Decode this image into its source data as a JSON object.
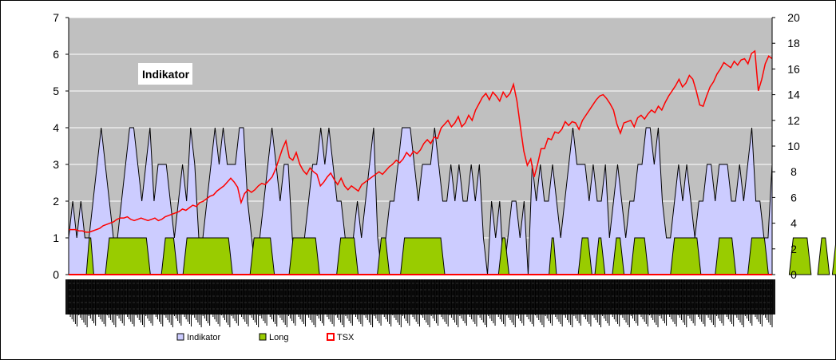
{
  "chart_data": {
    "type": "area",
    "title": "",
    "annotation": "Indikator",
    "y_left": {
      "min": 0,
      "max": 7,
      "ticks": [
        0,
        1,
        2,
        3,
        4,
        5,
        6,
        7
      ]
    },
    "y_right": {
      "min": 0,
      "max": 20,
      "ticks": [
        0,
        2,
        4,
        6,
        8,
        10,
        12,
        14,
        16,
        18,
        20
      ]
    },
    "grid": "horizontal",
    "legend_position": "bottom",
    "plot_background": "#c0c0c0",
    "series": [
      {
        "name": "Indikator",
        "kind": "area",
        "axis": "left",
        "color": "#ccccff",
        "values": [
          1,
          2,
          1,
          2,
          1,
          1,
          2,
          3,
          4,
          3,
          2,
          1,
          1,
          2,
          3,
          4,
          4,
          3,
          2,
          3,
          4,
          2,
          3,
          3,
          3,
          2,
          1,
          2,
          3,
          2,
          4,
          3,
          1,
          1,
          2,
          3,
          4,
          3,
          4,
          3,
          3,
          3,
          4,
          4,
          2,
          1,
          0,
          1,
          2,
          3,
          4,
          3,
          2,
          3,
          3,
          1,
          0,
          1,
          1,
          2,
          3,
          3,
          4,
          3,
          4,
          3,
          2,
          2,
          1,
          0,
          1,
          2,
          1,
          2,
          3,
          4,
          1,
          0,
          1,
          2,
          2,
          3,
          4,
          4,
          4,
          3,
          2,
          3,
          3,
          3,
          4,
          3,
          2,
          2,
          3,
          2,
          3,
          2,
          2,
          3,
          2,
          3,
          1,
          0,
          2,
          1,
          2,
          0,
          1,
          2,
          2,
          1,
          2,
          0,
          3,
          2,
          3,
          2,
          2,
          3,
          2,
          1,
          2,
          3,
          4,
          3,
          3,
          3,
          2,
          3,
          2,
          2,
          3,
          1,
          2,
          3,
          2,
          1,
          2,
          2,
          3,
          3,
          4,
          4,
          3,
          4,
          2,
          1,
          1,
          2,
          3,
          2,
          3,
          2,
          1,
          2,
          2,
          3,
          3,
          2,
          3,
          3,
          3,
          2,
          2,
          3,
          2,
          3,
          4,
          2,
          2,
          1,
          1,
          3
        ]
      },
      {
        "name": "Long",
        "kind": "area",
        "axis": "left",
        "color": "#99cc00",
        "intervals": [
          [
            4.7,
            5.8
          ],
          [
            9.5,
            19.6
          ],
          [
            23.3,
            26.3
          ],
          [
            28.6,
            39.8
          ],
          [
            45.1,
            50.1
          ],
          [
            54.7,
            61.2
          ],
          [
            66.4,
            70.7
          ],
          [
            76.4,
            78.4
          ],
          [
            82.1,
            92.0
          ],
          [
            106.2,
            107.8
          ],
          [
            118.5,
            119.6
          ],
          [
            125.8,
            128.2
          ],
          [
            129.9,
            131.4
          ],
          [
            134.2,
            136.1
          ],
          [
            138.7,
            142.1
          ],
          [
            148.5,
            155.0
          ],
          [
            159.5,
            163.6
          ],
          [
            167.5,
            171.6
          ],
          [
            177.7,
            182.1
          ],
          [
            184.7,
            186.6
          ],
          [
            188.3,
            190.9
          ],
          [
            194.4,
            196.0
          ]
        ]
      },
      {
        "name": "TSX",
        "kind": "line",
        "axis": "right",
        "color": "#ff0000",
        "values": [
          3.5,
          3.5,
          3.5,
          3.4,
          3.4,
          3.3,
          3.3,
          3.4,
          3.5,
          3.6,
          3.8,
          3.9,
          4.0,
          4.1,
          4.3,
          4.4,
          4.4,
          4.5,
          4.3,
          4.2,
          4.3,
          4.4,
          4.3,
          4.2,
          4.3,
          4.4,
          4.2,
          4.3,
          4.5,
          4.6,
          4.7,
          4.8,
          4.9,
          5.1,
          5.0,
          5.2,
          5.4,
          5.3,
          5.6,
          5.7,
          5.9,
          6.1,
          6.2,
          6.5,
          6.7,
          6.9,
          7.2,
          7.5,
          7.2,
          6.8,
          5.6,
          6.3,
          6.6,
          6.4,
          6.6,
          6.9,
          7.1,
          7.0,
          7.3,
          7.6,
          8.2,
          9.0,
          9.8,
          10.4,
          9.1,
          8.9,
          9.5,
          8.6,
          8.1,
          7.8,
          8.3,
          8.0,
          7.8,
          6.9,
          7.2,
          7.6,
          7.9,
          7.4,
          7.0,
          7.5,
          6.9,
          6.6,
          6.9,
          6.7,
          6.5,
          7.0,
          7.2,
          7.4,
          7.6,
          7.8,
          8.0,
          7.8,
          8.1,
          8.4,
          8.6,
          8.9,
          8.7,
          9.0,
          9.5,
          9.2,
          9.6,
          9.4,
          9.7,
          10.2,
          10.5,
          10.2,
          10.7,
          10.6,
          11.4,
          11.7,
          12.0,
          11.5,
          11.8,
          12.3,
          11.5,
          11.8,
          12.4,
          12.0,
          12.8,
          13.3,
          13.8,
          14.1,
          13.6,
          14.2,
          13.9,
          13.5,
          14.2,
          13.8,
          14.1,
          14.8,
          13.5,
          11.5,
          9.6,
          8.5,
          9.0,
          7.6,
          8.6,
          9.8,
          9.8,
          10.6,
          10.5,
          11.1,
          11.0,
          11.3,
          11.9,
          11.6,
          11.9,
          11.8,
          11.3,
          12.0,
          12.4,
          12.8,
          13.2,
          13.6,
          13.9,
          14.0,
          13.7,
          13.3,
          12.8,
          11.7,
          11.0,
          11.8,
          11.9,
          12.0,
          11.5,
          12.2,
          12.4,
          12.1,
          12.5,
          12.8,
          12.6,
          13.1,
          12.8,
          13.4,
          13.9,
          14.3,
          14.7,
          15.2,
          14.6,
          14.9,
          15.5,
          15.2,
          14.3,
          13.2,
          13.1,
          13.9,
          14.6,
          15.0,
          15.6,
          16.0,
          16.5,
          16.3,
          16.1,
          16.6,
          16.3,
          16.7,
          16.8,
          16.4,
          17.2,
          17.4,
          14.3,
          15.2,
          16.4,
          17.0,
          16.8
        ]
      }
    ],
    "x_labels_count": 420
  }
}
